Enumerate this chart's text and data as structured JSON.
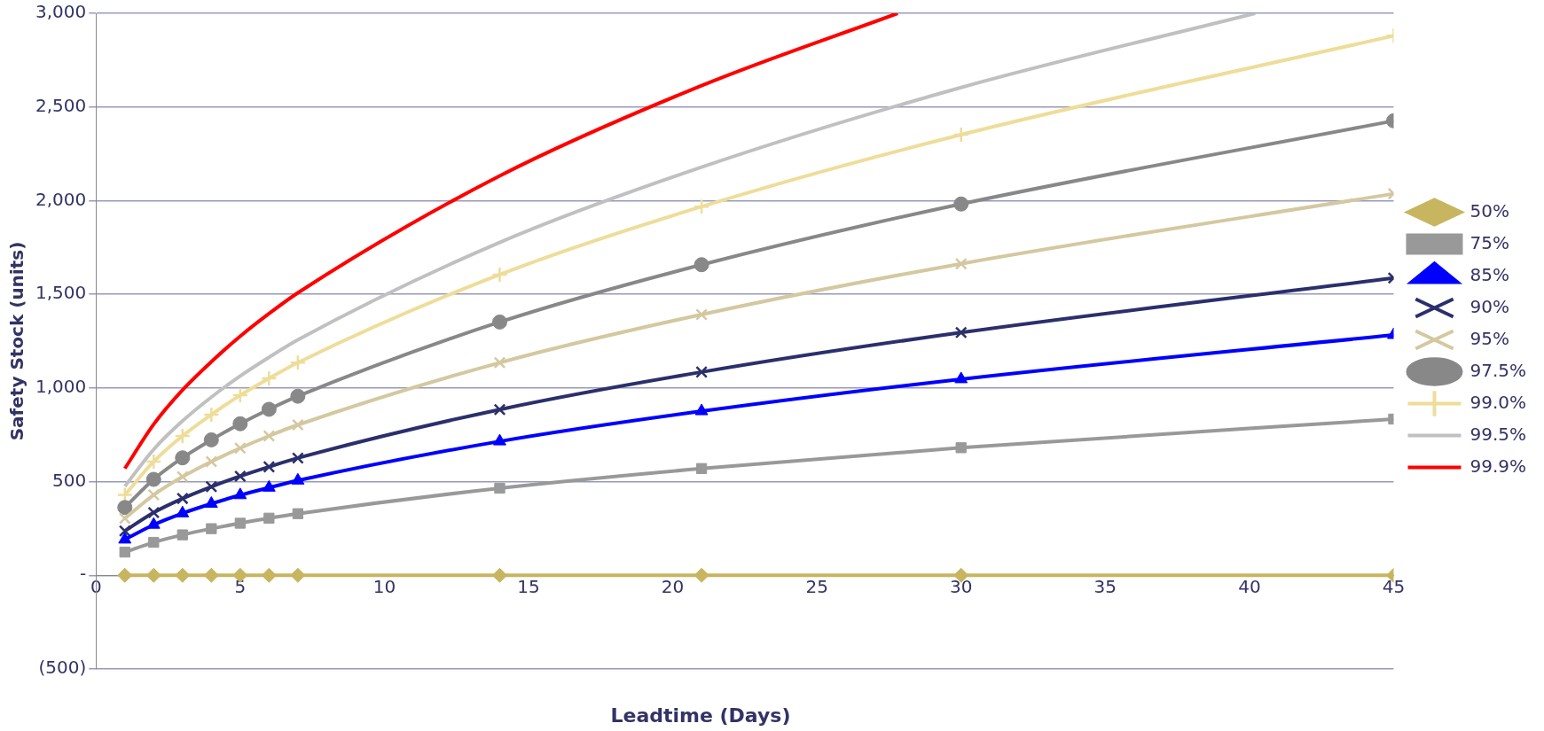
{
  "chart_data": {
    "type": "line",
    "xlabel": "Leadtime (Days)",
    "ylabel": "Safety Stock (units)",
    "x": [
      1,
      2,
      3,
      4,
      5,
      6,
      7,
      14,
      21,
      30,
      45
    ],
    "xlim": [
      0,
      45
    ],
    "xticks": [
      0,
      5,
      10,
      15,
      20,
      25,
      30,
      35,
      40,
      45
    ],
    "ylim": [
      -500,
      3000
    ],
    "yticks": [
      {
        "value": -500,
        "label": "(500)"
      },
      {
        "value": 0,
        "label": "-"
      },
      {
        "value": 500,
        "label": "500"
      },
      {
        "value": 1000,
        "label": "1,000"
      },
      {
        "value": 1500,
        "label": "1,500"
      },
      {
        "value": 2000,
        "label": "2,000"
      },
      {
        "value": 2500,
        "label": "2,500"
      },
      {
        "value": 3000,
        "label": "3,000"
      }
    ],
    "grid": "y",
    "legend": "right",
    "line_style": "solid",
    "series": [
      {
        "name": "50%",
        "color": "#c8b560",
        "marker": "diamond",
        "values": [
          0,
          0,
          0,
          0,
          0,
          0,
          0,
          0,
          0,
          0,
          0
        ]
      },
      {
        "name": "75%",
        "color": "#999999",
        "marker": "square",
        "values": [
          124,
          176,
          216,
          249,
          278,
          305,
          329,
          465,
          570,
          681,
          834
        ]
      },
      {
        "name": "85%",
        "color": "#0000ff",
        "marker": "triangle",
        "values": [
          191,
          270,
          331,
          382,
          428,
          468,
          506,
          715,
          876,
          1047,
          1283
        ]
      },
      {
        "name": "90%",
        "color": "#2b2f6b",
        "marker": "cross",
        "values": [
          237,
          335,
          410,
          473,
          529,
          579,
          626,
          885,
          1085,
          1296,
          1587
        ]
      },
      {
        "name": "95%",
        "color": "#d4c8a0",
        "marker": "cross",
        "values": [
          304,
          429,
          526,
          607,
          679,
          744,
          803,
          1135,
          1392,
          1663,
          2037
        ]
      },
      {
        "name": "97.5%",
        "color": "#888888",
        "marker": "circle",
        "values": [
          362,
          512,
          627,
          723,
          809,
          886,
          956,
          1352,
          1658,
          1982,
          2426
        ]
      },
      {
        "name": "99.0%",
        "color": "#eedd99",
        "marker": "plus",
        "values": [
          429,
          607,
          744,
          858,
          961,
          1051,
          1135,
          1605,
          1968,
          2352,
          2880
        ]
      },
      {
        "name": "99.5%",
        "color": "#c0c0c0",
        "marker": "none",
        "x": [
          1,
          2,
          3,
          4,
          5,
          6,
          7,
          14,
          21,
          30,
          40.2
        ],
        "values": [
          475,
          672,
          824,
          951,
          1064,
          1164,
          1257,
          1777,
          2179,
          2604,
          3000
        ]
      },
      {
        "name": "99.9%",
        "color": "#ff0000",
        "marker": "none",
        "x": [
          1,
          2,
          3,
          4,
          5,
          6,
          7,
          14,
          21,
          27.8
        ],
        "values": [
          570,
          806,
          989,
          1140,
          1276,
          1397,
          1508,
          2132,
          2614,
          3000
        ]
      }
    ]
  }
}
